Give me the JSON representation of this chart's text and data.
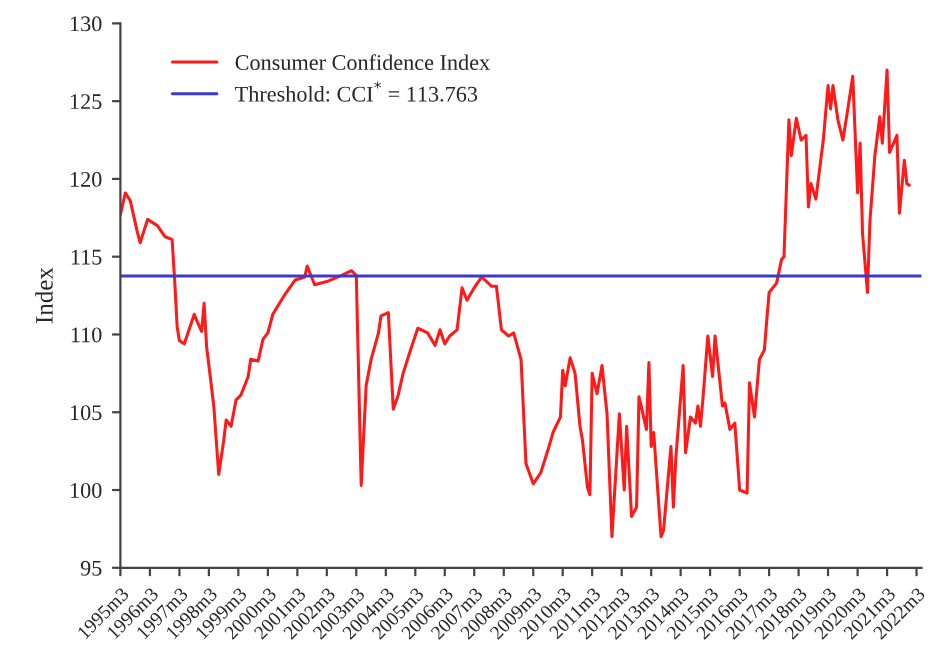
{
  "chart_data": {
    "type": "line",
    "ylabel": "Index",
    "legend": "top left",
    "grid": false,
    "marker": "none",
    "line_style": "solid",
    "xlim": [
      "1995-03",
      "2022-05"
    ],
    "ylim": [
      95,
      130
    ],
    "yticks": [
      95,
      100,
      105,
      110,
      115,
      120,
      125,
      130
    ],
    "xticks": [
      {
        "value": "1995-03",
        "label": "1995m3"
      },
      {
        "value": "1996-03",
        "label": "1996m3"
      },
      {
        "value": "1997-03",
        "label": "1997m3"
      },
      {
        "value": "1998-03",
        "label": "1998m3"
      },
      {
        "value": "1999-03",
        "label": "1999m3"
      },
      {
        "value": "2000-03",
        "label": "2000m3"
      },
      {
        "value": "2001-03",
        "label": "2001m3"
      },
      {
        "value": "2002-03",
        "label": "2002m3"
      },
      {
        "value": "2003-03",
        "label": "2003m3"
      },
      {
        "value": "2004-03",
        "label": "2004m3"
      },
      {
        "value": "2005-03",
        "label": "2005m3"
      },
      {
        "value": "2006-03",
        "label": "2006m3"
      },
      {
        "value": "2007-03",
        "label": "2007m3"
      },
      {
        "value": "2008-03",
        "label": "2008m3"
      },
      {
        "value": "2009-03",
        "label": "2009m3"
      },
      {
        "value": "2010-03",
        "label": "2010m3"
      },
      {
        "value": "2011-03",
        "label": "2011m3"
      },
      {
        "value": "2012-03",
        "label": "2012m3"
      },
      {
        "value": "2013-03",
        "label": "2013m3"
      },
      {
        "value": "2014-03",
        "label": "2014m3"
      },
      {
        "value": "2015-03",
        "label": "2015m3"
      },
      {
        "value": "2016-03",
        "label": "2016m3"
      },
      {
        "value": "2017-03",
        "label": "2017m3"
      },
      {
        "value": "2018-03",
        "label": "2018m3"
      },
      {
        "value": "2019-03",
        "label": "2019m3"
      },
      {
        "value": "2020-03",
        "label": "2020m3"
      },
      {
        "value": "2021-03",
        "label": "2021m3"
      },
      {
        "value": "2022-03",
        "label": "2022m3"
      }
    ],
    "ref_lines": [
      {
        "axis": "y",
        "value": 113.763,
        "label": "Threshold: CCI$^{*}$ = 113.763",
        "color": "#3a3acc",
        "line_style": "solid"
      }
    ],
    "series": [
      {
        "name": "Consumer Confidence Index",
        "color": "#ff1a1a",
        "x": [
          "1995-03",
          "1995-05",
          "1995-07",
          "1995-10",
          "1995-11",
          "1996-02",
          "1996-06",
          "1996-09",
          "1996-12",
          "1997-01",
          "1997-02",
          "1997-03",
          "1997-05",
          "1997-09",
          "1997-10",
          "1997-12",
          "1998-01",
          "1998-02",
          "1998-04",
          "1998-05",
          "1998-07",
          "1998-09",
          "1998-10",
          "1998-12",
          "1999-02",
          "1999-04",
          "1999-06",
          "1999-07",
          "1999-08",
          "1999-11",
          "2000-01",
          "2000-03",
          "2000-05",
          "2000-10",
          "2001-02",
          "2001-06",
          "2001-07",
          "2001-10",
          "2002-03",
          "2002-09",
          "2003-01",
          "2003-03",
          "2003-05",
          "2003-07",
          "2003-09",
          "2003-12",
          "2004-01",
          "2004-04",
          "2004-06",
          "2004-08",
          "2004-10",
          "2005-01",
          "2005-04",
          "2005-08",
          "2005-11",
          "2006-01",
          "2006-03",
          "2006-05",
          "2006-08",
          "2006-10",
          "2006-12",
          "2007-03",
          "2007-06",
          "2007-10",
          "2007-12",
          "2008-02",
          "2008-05",
          "2008-07",
          "2008-10",
          "2008-12",
          "2009-03",
          "2009-06",
          "2009-09",
          "2009-11",
          "2010-02",
          "2010-03",
          "2010-04",
          "2010-06",
          "2010-08",
          "2010-10",
          "2010-11",
          "2011-01",
          "2011-02",
          "2011-03",
          "2011-05",
          "2011-07",
          "2011-09",
          "2011-11",
          "2012-02",
          "2012-04",
          "2012-05",
          "2012-07",
          "2012-09",
          "2012-10",
          "2013-01",
          "2013-02",
          "2013-03",
          "2013-04",
          "2013-07",
          "2013-08",
          "2013-11",
          "2013-12",
          "2014-01",
          "2014-04",
          "2014-05",
          "2014-07",
          "2014-09",
          "2014-10",
          "2014-11",
          "2014-12",
          "2015-02",
          "2015-04",
          "2015-05",
          "2015-08",
          "2015-09",
          "2015-11",
          "2016-01",
          "2016-03",
          "2016-06",
          "2016-07",
          "2016-09",
          "2016-11",
          "2017-01",
          "2017-02",
          "2017-03",
          "2017-06",
          "2017-08",
          "2017-09",
          "2017-11",
          "2017-12",
          "2018-02",
          "2018-04",
          "2018-06",
          "2018-07",
          "2018-08",
          "2018-10",
          "2019-01",
          "2019-03",
          "2019-04",
          "2019-05",
          "2019-07",
          "2019-09",
          "2019-11",
          "2020-01",
          "2020-03",
          "2020-04",
          "2020-05",
          "2020-07",
          "2020-08",
          "2020-10",
          "2020-12",
          "2021-01",
          "2021-03",
          "2021-04",
          "2021-07",
          "2021-08",
          "2021-10",
          "2021-11",
          "2021-12"
        ],
        "values": [
          117.7,
          119.1,
          118.6,
          116.5,
          115.9,
          117.4,
          117.0,
          116.3,
          116.1,
          113.5,
          110.5,
          109.6,
          109.4,
          111.3,
          110.9,
          110.2,
          112.0,
          109.2,
          106.7,
          105.4,
          101.0,
          103.2,
          104.5,
          104.1,
          105.8,
          106.1,
          106.9,
          107.3,
          108.4,
          108.3,
          109.7,
          110.1,
          111.3,
          112.6,
          113.5,
          113.7,
          114.4,
          113.2,
          113.4,
          113.8,
          114.1,
          113.8,
          100.3,
          106.7,
          108.4,
          110.1,
          111.2,
          111.4,
          105.2,
          106.1,
          107.5,
          109.0,
          110.4,
          110.1,
          109.3,
          110.3,
          109.4,
          109.9,
          110.3,
          113.0,
          112.2,
          113.0,
          113.7,
          113.1,
          113.1,
          110.3,
          109.9,
          110.1,
          108.4,
          101.7,
          100.4,
          101.1,
          102.6,
          103.7,
          104.7,
          107.7,
          106.7,
          108.5,
          107.5,
          104.1,
          103.2,
          100.2,
          99.7,
          107.5,
          106.2,
          108.0,
          104.9,
          97.0,
          104.9,
          100.0,
          104.1,
          98.3,
          98.9,
          106.0,
          103.9,
          108.2,
          102.8,
          103.7,
          97.0,
          97.4,
          102.8,
          98.9,
          102.1,
          108.0,
          102.4,
          104.7,
          104.3,
          105.4,
          104.1,
          105.8,
          109.9,
          107.3,
          109.9,
          105.4,
          105.6,
          103.9,
          104.3,
          100.0,
          99.8,
          106.9,
          104.7,
          108.4,
          109.0,
          111.0,
          112.7,
          113.3,
          114.8,
          115.0,
          123.8,
          121.5,
          123.9,
          122.5,
          122.8,
          118.2,
          119.7,
          118.7,
          122.5,
          126.0,
          124.5,
          126.0,
          123.8,
          122.5,
          124.5,
          126.6,
          119.1,
          122.3,
          116.5,
          112.7,
          117.3,
          121.5,
          124.0,
          122.3,
          127.0,
          121.7,
          122.8,
          117.8,
          121.2,
          119.7,
          119.6
        ]
      }
    ]
  }
}
